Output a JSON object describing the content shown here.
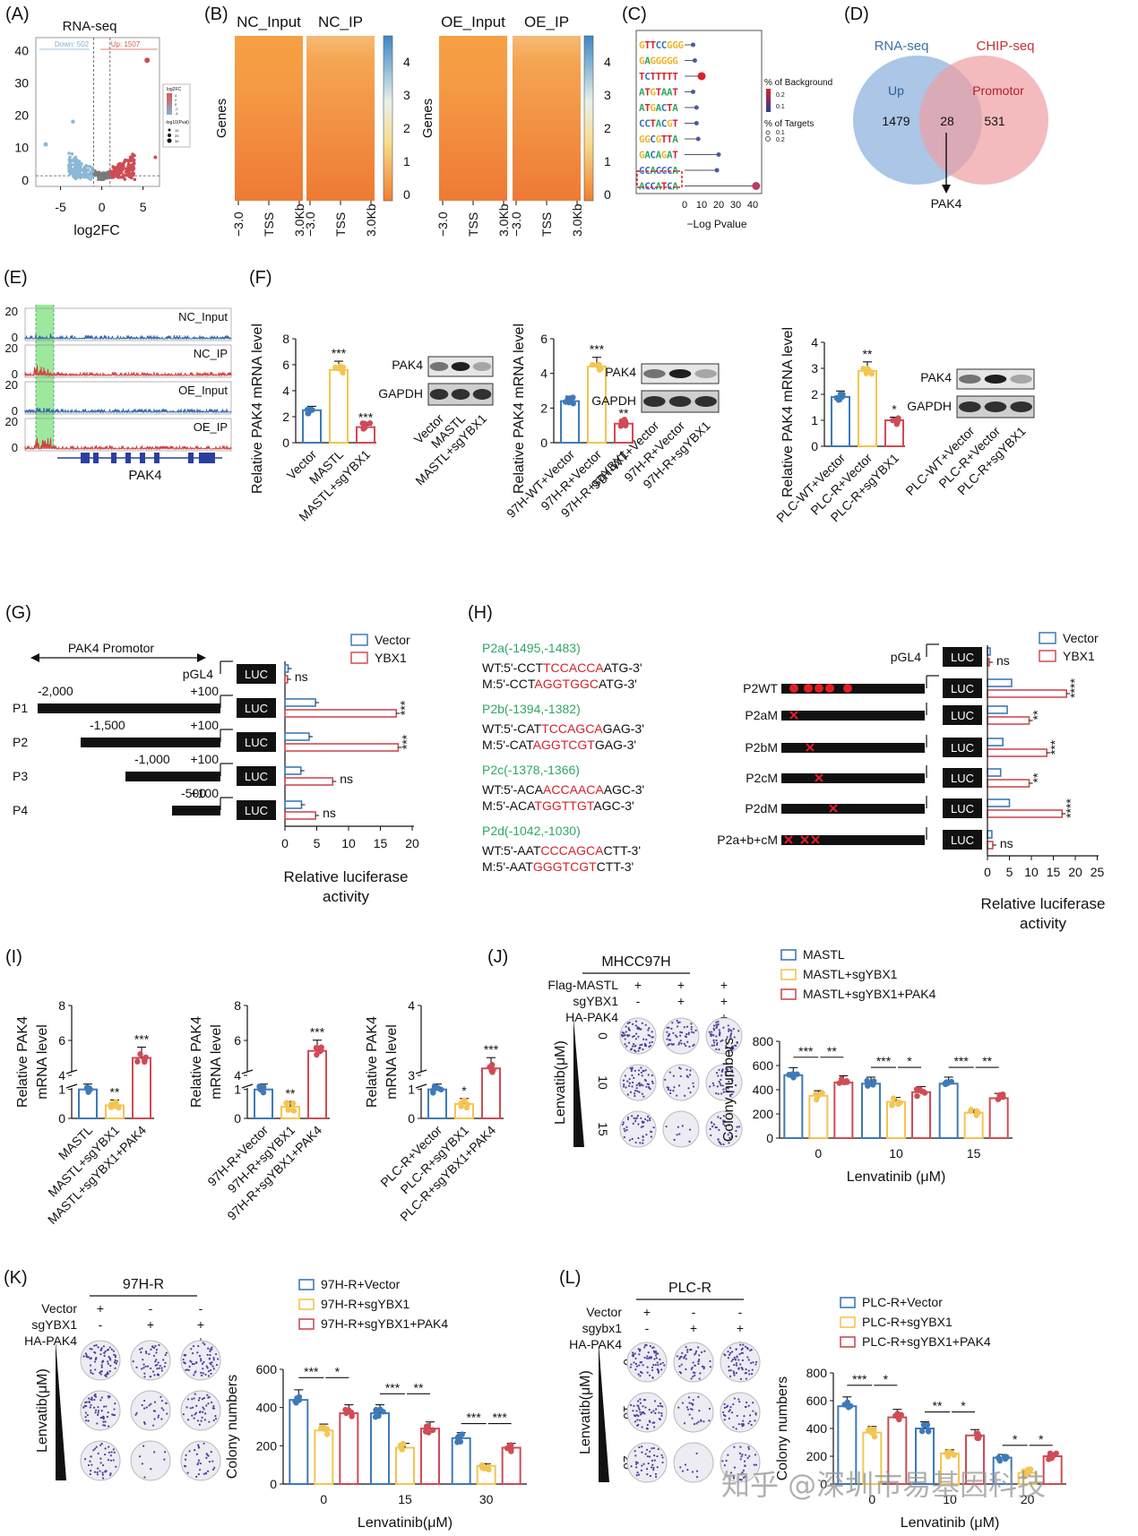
{
  "colors": {
    "blue": "#3d7ab8",
    "yellow": "#f3c552",
    "red": "#cf4b55",
    "green": "#2ea865",
    "text_red": "#d4232b",
    "venn_blue": "#8fb3dd",
    "venn_red": "#ef9ea3"
  },
  "panels": {
    "A": {
      "label": "(A)",
      "title": "RNA-seq",
      "down": "Down: 502",
      "up": "Up: 1507",
      "xlabel": "log2FC",
      "xticks": [
        "-5",
        "0",
        "5"
      ],
      "yticks": [
        "40",
        "30",
        "20",
        "10",
        "0"
      ],
      "legend": [
        "log2FC",
        "4",
        "2",
        "0",
        "-2",
        "-4",
        "-log10(Pval)",
        "10",
        "20",
        "30"
      ]
    },
    "B": {
      "label": "(B)",
      "cols": [
        "NC_Input",
        "NC_IP",
        "OE_Input",
        "OE_IP"
      ],
      "ylabel": "Genes",
      "cbar": [
        "4",
        "3",
        "2",
        "1",
        "0"
      ],
      "xticks": [
        "−3.0",
        "TSS",
        "3.0Kb"
      ]
    },
    "C": {
      "label": "(C)",
      "xlabel": "−Log Pvalue",
      "xticks": [
        "0",
        "10",
        "20",
        "30",
        "40"
      ],
      "legend": [
        "% of Background",
        "0.2",
        "0.1",
        "% of Targets",
        "0.1",
        "0.2"
      ],
      "motifs": [
        "GTTCCGGG",
        "GAGGGGG",
        "TCTTTTT",
        "ATGTAAT",
        "ATGACTA",
        "CCTACGT",
        "GGCGTTA",
        "GACAGAT",
        "CCACCCA",
        "ACCATCA"
      ],
      "values": [
        5,
        6,
        10,
        5,
        7,
        7,
        8,
        20,
        19,
        42
      ]
    },
    "D": {
      "label": "(D)",
      "left": "RNA-seq",
      "right": "CHIP-seq",
      "up": "Up",
      "promotor": "Promotor",
      "n1": "1479",
      "n2": "28",
      "n3": "531",
      "gene": "PAK4"
    },
    "E": {
      "label": "(E)",
      "tracks": [
        "NC_Input",
        "NC_IP",
        "OE_Input",
        "OE_IP"
      ],
      "ticks": [
        "20",
        "0"
      ],
      "gene": "PAK4"
    },
    "F": {
      "label": "(F)",
      "ylabel": "Relative PAK4 mRNA level",
      "groups": [
        {
          "cats": [
            "Vector",
            "MASTL",
            "MASTL+sgYBX1"
          ],
          "values": [
            2.5,
            5.6,
            1.2
          ],
          "ymax": 8,
          "yticks": [
            "0",
            "2",
            "4",
            "6",
            "8"
          ],
          "sig": [
            "",
            "***",
            "***"
          ],
          "wb": [
            "Vector",
            "MASTL",
            "MASTL+sgYBX1"
          ]
        },
        {
          "cats": [
            "97H-WT+Vector",
            "97H-R+Vector",
            "97H-R+sgYBX1"
          ],
          "values": [
            2.4,
            4.4,
            1.1
          ],
          "ymax": 6,
          "yticks": [
            "0",
            "2",
            "4",
            "6"
          ],
          "sig": [
            "",
            "***",
            "**"
          ],
          "wb": [
            "97H-WT+Vector",
            "97H-R+Vector",
            "97H-R+sgYBX1"
          ]
        },
        {
          "cats": [
            "PLC-WT+Vector",
            "PLC-R+Vector",
            "PLC-R+sgYBX1"
          ],
          "values": [
            1.9,
            2.9,
            1.0
          ],
          "ymax": 4,
          "yticks": [
            "0",
            "1",
            "2",
            "3",
            "4"
          ],
          "sig": [
            "",
            "**",
            "*"
          ],
          "wb": [
            "PLC-WT+Vector",
            "PLC-R+Vector",
            "PLC-R+sgYBX1"
          ]
        }
      ],
      "wb_labels": [
        "PAK4",
        "GAPDH"
      ]
    },
    "G": {
      "label": "(G)",
      "promotor": "PAK4 Promotor",
      "legend": [
        "Vector",
        "YBX1"
      ],
      "rows": [
        "pGL4",
        "P1",
        "P2",
        "P3",
        "P4"
      ],
      "starts": [
        "-2,000",
        "-1,500",
        "-1,000",
        "-500"
      ],
      "end": "+100",
      "luc": "LUC",
      "vector": [
        0.5,
        4.8,
        3.8,
        2.5,
        2.6
      ],
      "ybx1": [
        0.4,
        17.5,
        17.8,
        7.5,
        4.8
      ],
      "sig": [
        "ns",
        "***",
        "***",
        "ns",
        "ns"
      ],
      "xticks": [
        "0",
        "5",
        "10",
        "15",
        "20"
      ],
      "xlabel": "Relative luciferase",
      "xlabel2": "activity"
    },
    "H": {
      "label": "(H)",
      "sites": [
        {
          "name": "P2a(-1495,-1483)",
          "wt": [
            "WT:5'-CCT",
            "TCCACCA",
            "ATG-3'"
          ],
          "m": [
            "M:5'-CCT",
            "AGGTGGC",
            "ATG-3'"
          ]
        },
        {
          "name": "P2b(-1394,-1382)",
          "wt": [
            "WT:5'-CAT",
            "TCCAGCA",
            "GAG-3'"
          ],
          "m": [
            "M:5'-CAT",
            "AGGTCGT",
            "GAG-3'"
          ]
        },
        {
          "name": "P2c(-1378,-1366)",
          "wt": [
            "WT:5'-ACA",
            "ACCAACA",
            "AGC-3'"
          ],
          "m": [
            "M:5'-ACA",
            "TGGTTGT",
            "AGC-3'"
          ]
        },
        {
          "name": "P2d(-1042,-1030)",
          "wt": [
            "WT:5'-AAT",
            "CCCAGCA",
            "CTT-3'"
          ],
          "m": [
            "M:5'-AAT",
            "GGGTCGT",
            "CTT-3'"
          ]
        }
      ],
      "legend": [
        "Vector",
        "YBX1"
      ],
      "rows": [
        "pGL4",
        "P2WT",
        "P2aM",
        "P2bM",
        "P2cM",
        "P2dM",
        "P2a+b+cM"
      ],
      "vector": [
        0.6,
        5.5,
        4.5,
        3.5,
        3.0,
        5.0,
        1.0
      ],
      "ybx1": [
        0.4,
        18,
        9.5,
        13.5,
        9.5,
        17,
        1.2
      ],
      "sig": [
        "ns",
        "****",
        "**",
        "***",
        "**",
        "****",
        "ns"
      ],
      "xticks": [
        "0",
        "5",
        "10",
        "15",
        "20",
        "25"
      ],
      "xlabel": "Relative luciferase",
      "xlabel2": "activity",
      "luc": "LUC"
    },
    "I": {
      "label": "(I)",
      "ylabel": "Relative PAK4",
      "ylabel2": "mRNA level",
      "groups": [
        {
          "cats": [
            "MASTL",
            "MASTL+sgYBX1",
            "MASTL+sgYBX1+PAK4"
          ],
          "values": [
            1.0,
            0.45,
            5.0
          ],
          "sig": [
            "",
            "**",
            "***"
          ],
          "yticks": [
            "0",
            "1",
            "4",
            "6",
            "8"
          ]
        },
        {
          "cats": [
            "97H-R+Vector",
            "97H-R+sgYBX1",
            "97H-R+sgYBX1+PAK4"
          ],
          "values": [
            1.0,
            0.4,
            5.4
          ],
          "sig": [
            "",
            "**",
            "***"
          ],
          "yticks": [
            "0",
            "1",
            "4",
            "6",
            "8"
          ]
        },
        {
          "cats": [
            "PLC-R+Vector",
            "PLC-R+sgYBX1",
            "PLC-R+sgYBX1+PAK4"
          ],
          "values": [
            1.0,
            0.5,
            3.1
          ],
          "sig": [
            "",
            "*",
            "***"
          ],
          "yticks": [
            "0",
            "1",
            "3",
            "4"
          ]
        }
      ]
    },
    "J": {
      "label": "(J)",
      "cell": "MHCC97H",
      "rows": [
        "Flag-MASTL",
        "sgYBX1",
        "HA-PAK4"
      ],
      "signs": [
        [
          "+",
          "+",
          "+"
        ],
        [
          "-",
          "+",
          "+"
        ],
        [
          "-",
          "-",
          "+"
        ]
      ],
      "doselabel": "Lenvatib(μM)",
      "doses": [
        "0",
        "10",
        "15"
      ],
      "legend": [
        "MASTL",
        "MASTL+sgYBX1",
        "MASTL+sgYBX1+PAK4"
      ],
      "ylabel": "Colony numbers",
      "xlabel": "Lenvatinib (μM)",
      "yticks": [
        "0",
        "200",
        "400",
        "600",
        "800"
      ],
      "ymax": 800,
      "values": [
        [
          520,
          350,
          460
        ],
        [
          450,
          300,
          380
        ],
        [
          450,
          210,
          330
        ]
      ],
      "sig": [
        [
          "***",
          "**"
        ],
        [
          "***",
          "*"
        ],
        [
          "***",
          "**"
        ]
      ]
    },
    "K": {
      "label": "(K)",
      "cell": "97H-R",
      "rows": [
        "Vector",
        "sgYBX1",
        "HA-PAK4"
      ],
      "signs": [
        [
          "+",
          "-",
          "-"
        ],
        [
          "-",
          "+",
          "+"
        ],
        [
          "-",
          "-",
          "+"
        ]
      ],
      "doselabel": "Lenvatib(μM)",
      "doses": [
        "0",
        "15",
        "30"
      ],
      "legend": [
        "97H-R+Vector",
        "97H-R+sgYBX1",
        "97H-R+sgYBX1+PAK4"
      ],
      "ylabel": "Colony numbers",
      "xlabel": "Lenvatinib(μM)",
      "yticks": [
        "0",
        "200",
        "400",
        "600"
      ],
      "ymax": 600,
      "values": [
        [
          440,
          280,
          370
        ],
        [
          370,
          190,
          290
        ],
        [
          240,
          95,
          190
        ]
      ],
      "sig": [
        [
          "***",
          "*"
        ],
        [
          "***",
          "**"
        ],
        [
          "***",
          "***"
        ]
      ]
    },
    "L": {
      "label": "(L)",
      "cell": "PLC-R",
      "rows": [
        "Vector",
        "sgybx1",
        "HA-PAK4"
      ],
      "signs": [
        [
          "+",
          "-",
          "-"
        ],
        [
          "-",
          "+",
          "+"
        ],
        [
          "-",
          "-",
          "+"
        ]
      ],
      "doselabel": "Lenvatib(μM)",
      "doses": [
        "0",
        "10",
        "20"
      ],
      "legend": [
        "PLC-R+Vector",
        "PLC-R+sgYBX1",
        "PLC-R+sgYBX1+PAK4"
      ],
      "ylabel": "Colony numbers",
      "xlabel": "Lenvatinib (μM)",
      "yticks": [
        "0",
        "200",
        "400",
        "600",
        "800"
      ],
      "ymax": 800,
      "values": [
        [
          560,
          370,
          480
        ],
        [
          400,
          220,
          350
        ],
        [
          190,
          80,
          200
        ]
      ],
      "sig": [
        [
          "***",
          "*"
        ],
        [
          "**",
          "*"
        ],
        [
          "*",
          "*"
        ]
      ]
    }
  },
  "watermark": "知乎 @深圳市易基因科技"
}
